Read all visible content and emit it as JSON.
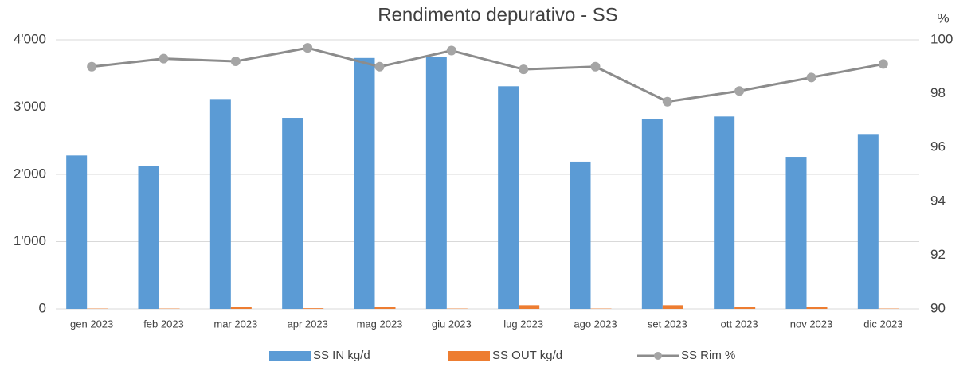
{
  "chart_data": {
    "type": "bar+line",
    "title": "Rendimento depurativo - SS",
    "y2label": "%",
    "categories": [
      "gen 2023",
      "feb 2023",
      "mar 2023",
      "apr 2023",
      "mag 2023",
      "giu 2023",
      "lug 2023",
      "ago 2023",
      "set 2023",
      "ott 2023",
      "nov 2023",
      "dic 2023"
    ],
    "series": [
      {
        "name": "SS IN kg/d",
        "color": "#5b9bd5",
        "type": "bar",
        "values": [
          2280,
          2120,
          3120,
          2840,
          3730,
          3750,
          3310,
          2190,
          2820,
          2860,
          2260,
          2600
        ]
      },
      {
        "name": "SS OUT kg/d",
        "color": "#ed7d31",
        "type": "bar",
        "values": [
          5,
          5,
          30,
          10,
          30,
          5,
          55,
          5,
          55,
          30,
          30,
          5
        ]
      },
      {
        "name": "SS Rim %",
        "color": "#8c8c8c",
        "type": "line",
        "axis": "y2",
        "values": [
          99.0,
          99.3,
          99.2,
          99.7,
          99.0,
          99.6,
          98.9,
          99.0,
          97.7,
          98.1,
          98.6,
          99.1
        ]
      }
    ],
    "ylim": [
      0,
      4000
    ],
    "yticks": [
      0,
      {
        "value": 1000,
        "label": "1'000"
      },
      {
        "value": 2000,
        "label": "2'000"
      },
      {
        "value": 3000,
        "label": "3'000"
      },
      {
        "value": 4000,
        "label": "4'000"
      }
    ],
    "y2lim": [
      90,
      100
    ],
    "y2ticks": [
      90,
      92,
      94,
      96,
      98,
      100
    ],
    "grid": true,
    "legend": "bottom"
  }
}
